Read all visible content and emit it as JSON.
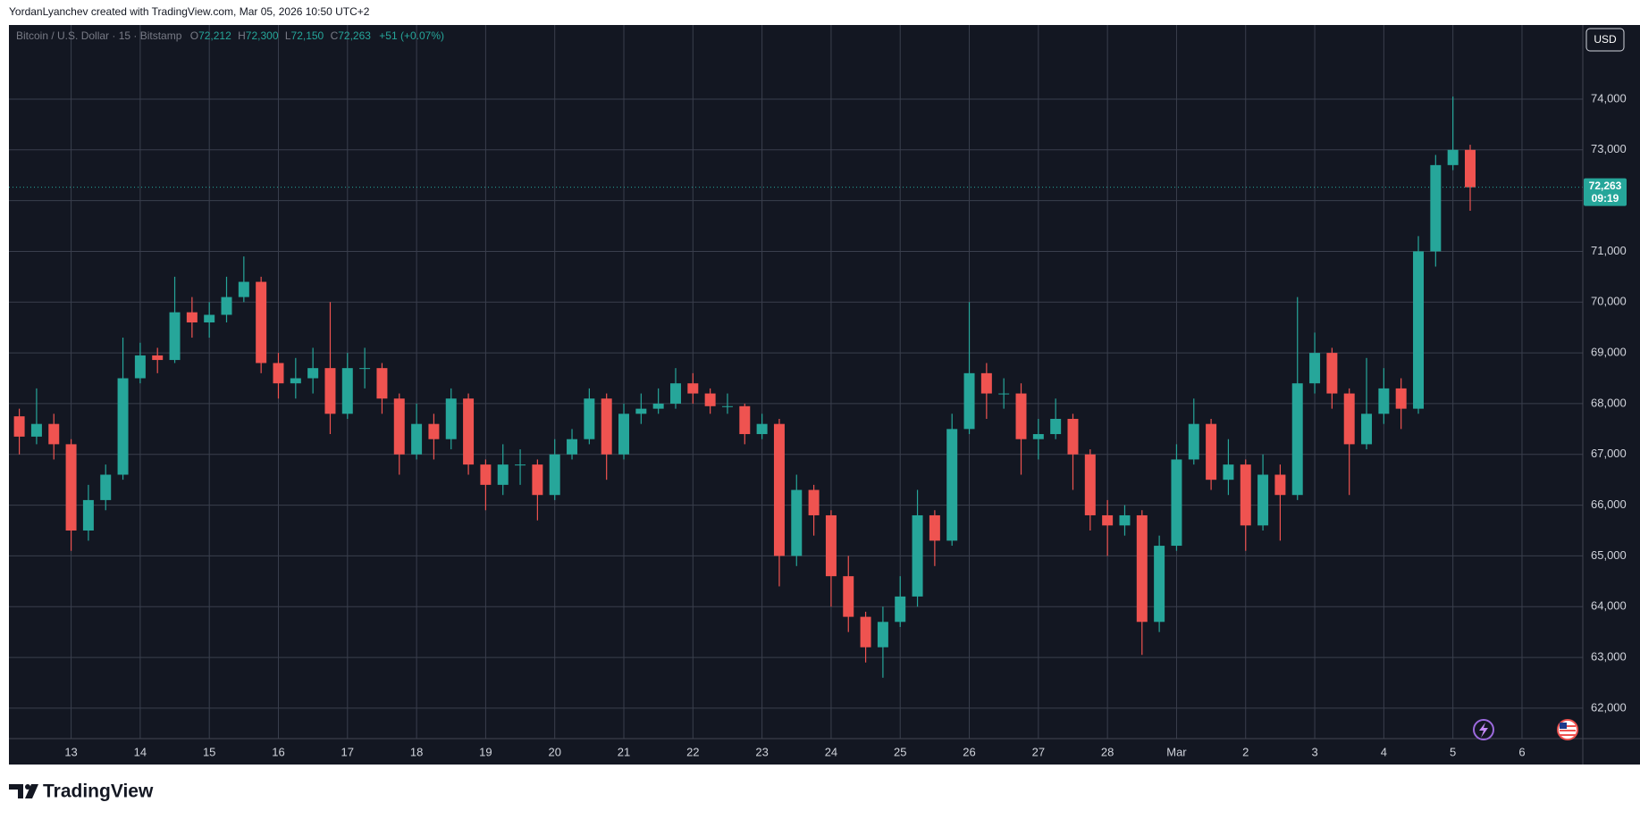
{
  "header": {
    "attribution": "YordanLyanchev created with TradingView.com, Mar 05, 2026 10:50 UTC+2"
  },
  "toolbar": {
    "currency": "USD"
  },
  "legend": {
    "symbol": "Bitcoin / U.S. Dollar · 15 · Bitstamp",
    "open_key": "O",
    "open": "72,212",
    "high_key": "H",
    "high": "72,300",
    "low_key": "L",
    "low": "72,150",
    "close_key": "C",
    "close": "72,263",
    "change": "+51 (+0.07%)"
  },
  "chart_data": {
    "type": "candlestick",
    "x": [
      12.25,
      12.5,
      12.75,
      13,
      13.25,
      13.5,
      13.75,
      14,
      14.25,
      14.5,
      14.75,
      15,
      15.25,
      15.5,
      15.75,
      16,
      16.25,
      16.5,
      16.75,
      17,
      17.25,
      17.5,
      17.75,
      18,
      18.25,
      18.5,
      18.75,
      19,
      19.25,
      19.5,
      19.75,
      20,
      20.25,
      20.5,
      20.75,
      21,
      21.25,
      21.5,
      21.75,
      22,
      22.25,
      22.5,
      22.75,
      23,
      23.25,
      23.5,
      23.75,
      24,
      24.25,
      24.5,
      24.75,
      25,
      25.25,
      25.5,
      25.75,
      26,
      26.25,
      26.5,
      26.75,
      27,
      27.25,
      27.5,
      27.75,
      28,
      28.25,
      28.5,
      28.75,
      29,
      29.25,
      29.5,
      29.75,
      30,
      30.25,
      30.5,
      30.75,
      31,
      31.25,
      31.5,
      31.75,
      32,
      32.25,
      32.5,
      32.75,
      33,
      33.25
    ],
    "open": [
      67750,
      67350,
      67600,
      67200,
      65500,
      66100,
      66600,
      68500,
      68950,
      68860,
      69800,
      69600,
      69750,
      70100,
      70400,
      68800,
      68400,
      68500,
      68700,
      67800,
      68700,
      68700,
      68100,
      67000,
      67600,
      67300,
      68100,
      66800,
      66400,
      66800,
      66800,
      66200,
      67000,
      67300,
      68100,
      67000,
      67800,
      67900,
      68000,
      68400,
      68200,
      67950,
      67950,
      67400,
      67600,
      65000,
      66300,
      65800,
      64600,
      63800,
      63200,
      63700,
      64200,
      65800,
      65300,
      67500,
      68600,
      68200,
      68200,
      67300,
      67400,
      67700,
      67000,
      65800,
      65600,
      65800,
      63700,
      65200,
      66900,
      67600,
      66500,
      66800,
      65600,
      66600,
      66200,
      68400,
      69000,
      68200,
      67200,
      67800,
      68300,
      67900,
      71000,
      72700,
      73000
    ],
    "high": [
      67900,
      68300,
      67800,
      67300,
      66400,
      66800,
      69300,
      69200,
      69100,
      70500,
      70100,
      70000,
      70500,
      70900,
      70500,
      69000,
      68900,
      69100,
      70000,
      69000,
      69100,
      68800,
      68200,
      68000,
      67800,
      68300,
      68200,
      66900,
      67200,
      67100,
      66900,
      67300,
      67500,
      68300,
      68200,
      68000,
      68200,
      68300,
      68700,
      68600,
      68300,
      68200,
      68000,
      67800,
      67700,
      66600,
      66400,
      65900,
      65000,
      63900,
      64000,
      64600,
      66300,
      65900,
      67800,
      70000,
      68800,
      68500,
      68400,
      67700,
      68100,
      67800,
      67100,
      66100,
      66000,
      65900,
      65400,
      67200,
      68100,
      67700,
      67300,
      66900,
      67000,
      66800,
      70100,
      69400,
      69100,
      68300,
      68900,
      68700,
      68500,
      71300,
      72900,
      74050,
      73100
    ],
    "low": [
      67000,
      67200,
      66900,
      65100,
      65300,
      65900,
      66500,
      68400,
      68600,
      68800,
      69300,
      69300,
      69600,
      70000,
      68600,
      68100,
      68100,
      68200,
      67400,
      67700,
      68300,
      67800,
      66600,
      66900,
      66900,
      67100,
      66600,
      65900,
      66200,
      66400,
      65700,
      66100,
      66900,
      67200,
      66500,
      66900,
      67600,
      67800,
      67900,
      68000,
      67800,
      67800,
      67200,
      67300,
      64400,
      64800,
      65400,
      64000,
      63500,
      62900,
      62600,
      63600,
      64000,
      64800,
      65200,
      67400,
      67700,
      67900,
      66600,
      66900,
      67300,
      66300,
      65500,
      65000,
      65400,
      63050,
      63500,
      65100,
      66800,
      66300,
      66200,
      65100,
      65500,
      65300,
      66100,
      68200,
      67900,
      66200,
      67100,
      67600,
      67500,
      67800,
      70700,
      72600,
      71800
    ],
    "close": [
      67350,
      67600,
      67200,
      65500,
      66100,
      66600,
      68500,
      68950,
      68860,
      69800,
      69600,
      69750,
      70100,
      70400,
      68800,
      68400,
      68500,
      68700,
      67800,
      68700,
      68700,
      68100,
      67000,
      67600,
      67300,
      68100,
      66800,
      66400,
      66800,
      66800,
      66200,
      67000,
      67300,
      68100,
      67000,
      67800,
      67900,
      68000,
      68400,
      68200,
      67950,
      67950,
      67400,
      67600,
      65000,
      66300,
      65800,
      64600,
      63800,
      63200,
      63700,
      64200,
      65800,
      65300,
      67500,
      68600,
      68200,
      68200,
      67300,
      67400,
      67700,
      67000,
      65800,
      65600,
      65800,
      63700,
      65200,
      66900,
      67600,
      66500,
      66800,
      65600,
      66600,
      66200,
      68400,
      69000,
      68200,
      67200,
      67800,
      68300,
      67900,
      71000,
      72700,
      73000,
      72263
    ],
    "up_color": "#26a69a",
    "down_color": "#ef5350",
    "xlim": [
      12.1,
      34.88
    ],
    "xticks": [
      13,
      14,
      15,
      16,
      17,
      18,
      19,
      20,
      21,
      22,
      23,
      24,
      25,
      26,
      27,
      28,
      {
        "value": 29,
        "label": "Mar"
      },
      {
        "value": 30,
        "label": "2"
      },
      {
        "value": 31,
        "label": "3"
      },
      {
        "value": 32,
        "label": "4"
      },
      {
        "value": 33,
        "label": "5"
      },
      {
        "value": 34,
        "label": "6"
      }
    ],
    "ylim": [
      61400,
      75460
    ],
    "yticks": [
      {
        "value": 62000,
        "label": "62,000"
      },
      {
        "value": 63000,
        "label": "63,000"
      },
      {
        "value": 64000,
        "label": "64,000"
      },
      {
        "value": 65000,
        "label": "65,000"
      },
      {
        "value": 66000,
        "label": "66,000"
      },
      {
        "value": 67000,
        "label": "67,000"
      },
      {
        "value": 68000,
        "label": "68,000"
      },
      {
        "value": 69000,
        "label": "69,000"
      },
      {
        "value": 70000,
        "label": "70,000"
      },
      {
        "value": 71000,
        "label": "71,000"
      },
      {
        "value": 72000,
        "label": "72,000"
      },
      {
        "value": 73000,
        "label": "73,000"
      },
      {
        "value": 74000,
        "label": "74,000"
      }
    ],
    "grid": true,
    "last_price": 72263,
    "last_price_label": "72,263",
    "countdown": "09:19"
  },
  "footer": {
    "brand": "TradingView"
  }
}
